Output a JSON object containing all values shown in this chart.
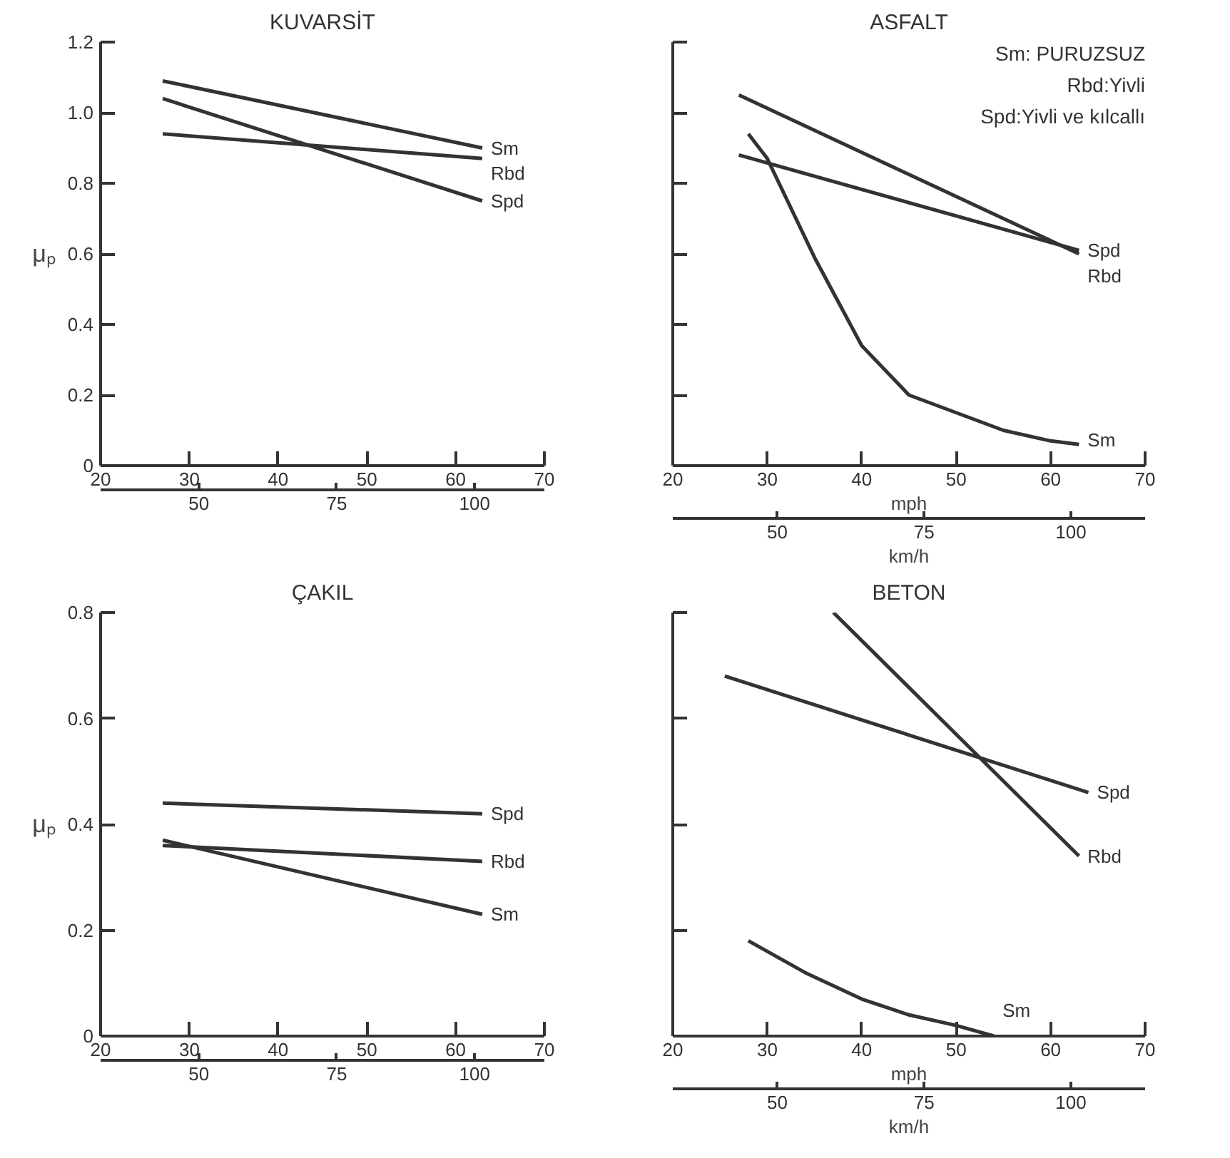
{
  "chart_data": [
    {
      "type": "line",
      "title": "KUVARSİT",
      "ylabel": "μₚ",
      "xlim": [
        20,
        70
      ],
      "xticks": [
        20,
        30,
        40,
        50,
        60,
        70
      ],
      "ylim": [
        0,
        1.2
      ],
      "yticks": [
        0,
        0.2,
        0.4,
        0.6,
        0.8,
        {
          "value": 1.0,
          "label": "1.0"
        },
        1.2
      ],
      "x2lim": [
        32.19,
        112.65
      ],
      "x2ticks": [
        50,
        75,
        100
      ],
      "grid": false,
      "series": [
        {
          "name": "Sm",
          "color": "#333333",
          "x": [
            27,
            63
          ],
          "values": [
            1.09,
            0.9
          ]
        },
        {
          "name": "Rbd",
          "color": "#333333",
          "x": [
            27,
            63
          ],
          "values": [
            0.94,
            0.87
          ]
        },
        {
          "name": "Spd",
          "color": "#333333",
          "x": [
            27,
            63
          ],
          "values": [
            1.04,
            0.75
          ]
        }
      ]
    },
    {
      "type": "line",
      "title": "ASFALT",
      "xlabel": "mph",
      "x2label": "km/h",
      "xlim": [
        20,
        70
      ],
      "xticks": [
        20,
        30,
        40,
        50,
        60,
        70
      ],
      "ylim": [
        0,
        1.2
      ],
      "yticks": [
        0,
        0.2,
        0.4,
        0.6,
        0.8,
        1.0,
        1.2
      ],
      "x2lim": [
        32.19,
        112.65
      ],
      "x2ticks": [
        50,
        75,
        100
      ],
      "tick_labels": "x",
      "grid": false,
      "annotations": [
        "Sm: PURUZSUZ",
        "Rbd:Yivli",
        "Spd:Yivli ve kılcallı"
      ],
      "series": [
        {
          "name": "Rbd",
          "color": "#333333",
          "x": [
            27,
            63
          ],
          "values": [
            1.05,
            0.6
          ]
        },
        {
          "name": "Spd",
          "color": "#333333",
          "x": [
            27,
            63
          ],
          "values": [
            0.88,
            0.61
          ]
        },
        {
          "name": "Sm",
          "color": "#333333",
          "x": [
            28,
            30,
            35,
            40,
            45,
            50,
            55,
            60,
            63
          ],
          "values": [
            0.94,
            0.87,
            0.59,
            0.34,
            0.2,
            0.15,
            0.1,
            0.07,
            0.06
          ]
        }
      ]
    },
    {
      "type": "line",
      "title": "ÇAKIL",
      "ylabel": "μₚ",
      "xlim": [
        20,
        70
      ],
      "xticks": [
        20,
        30,
        40,
        50,
        60,
        70
      ],
      "ylim": [
        0,
        0.8
      ],
      "yticks": [
        0,
        0.2,
        0.4,
        0.6,
        0.8
      ],
      "x2lim": [
        32.19,
        112.65
      ],
      "x2ticks": [
        50,
        75,
        100
      ],
      "grid": false,
      "series": [
        {
          "name": "Spd",
          "color": "#333333",
          "x": [
            27,
            63
          ],
          "values": [
            0.44,
            0.42
          ]
        },
        {
          "name": "Rbd",
          "color": "#333333",
          "x": [
            27,
            63
          ],
          "values": [
            0.36,
            0.33
          ]
        },
        {
          "name": "Sm",
          "color": "#333333",
          "x": [
            27,
            63
          ],
          "values": [
            0.37,
            0.23
          ]
        }
      ]
    },
    {
      "type": "line",
      "title": "BETON",
      "xlabel": "mph",
      "x2label": "km/h",
      "xlim": [
        20,
        70
      ],
      "xticks": [
        20,
        30,
        40,
        50,
        60,
        70
      ],
      "ylim": [
        0,
        0.8
      ],
      "yticks": [
        0,
        0.2,
        0.4,
        0.6,
        0.8
      ],
      "x2lim": [
        32.19,
        112.65
      ],
      "x2ticks": [
        50,
        75,
        100
      ],
      "tick_labels": "x",
      "grid": false,
      "series": [
        {
          "name": "Rbd",
          "color": "#333333",
          "x": [
            37,
            63
          ],
          "values": [
            0.8,
            0.34
          ]
        },
        {
          "name": "Spd",
          "color": "#333333",
          "x": [
            25.5,
            64
          ],
          "values": [
            0.68,
            0.46
          ]
        },
        {
          "name": "Sm",
          "color": "#333333",
          "x": [
            28,
            34,
            40,
            45,
            50,
            54
          ],
          "values": [
            0.18,
            0.12,
            0.07,
            0.04,
            0.02,
            0
          ]
        }
      ]
    }
  ]
}
